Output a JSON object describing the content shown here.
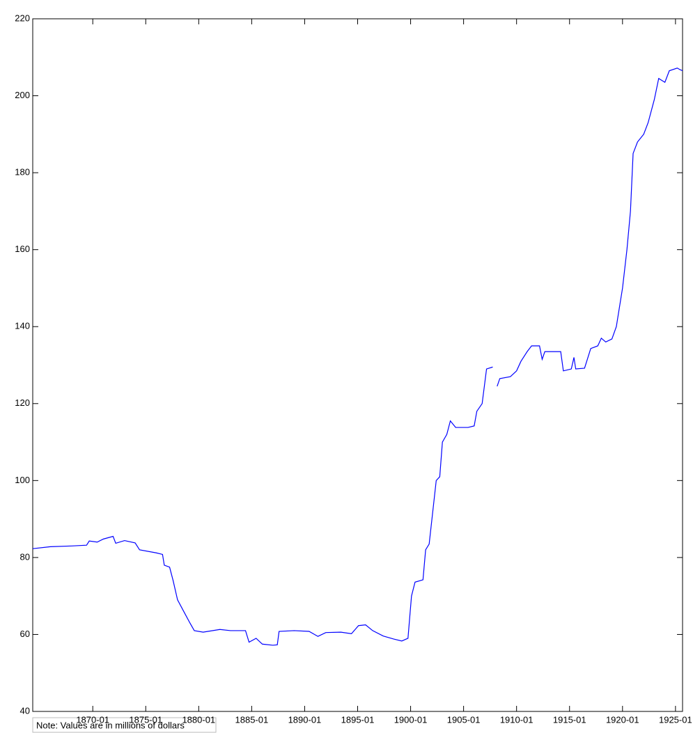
{
  "chart_data": {
    "type": "line",
    "note": "Note: Values are in millions of dollars",
    "x": [
      "1864-05",
      "1866-01",
      "1868-01",
      "1869-06",
      "1869-09",
      "1870-06",
      "1871-01",
      "1871-12",
      "1872-03",
      "1873-01",
      "1874-01",
      "1874-06",
      "1876-01",
      "1876-08",
      "1876-10",
      "1877-04",
      "1877-08",
      "1878-01",
      "1878-08",
      "1879-03",
      "1879-08",
      "1880-06",
      "1882-01",
      "1883-01",
      "1884-06",
      "1884-10",
      "1885-06",
      "1886-01",
      "1887-01",
      "1887-06",
      "1887-08",
      "1889-01",
      "1890-06",
      "1891-04",
      "1892-01",
      "1893-06",
      "1894-06",
      "1895-02",
      "1895-10",
      "1896-06",
      "1897-06",
      "1898-06",
      "1899-03",
      "1899-10",
      "1900-02",
      "1900-06",
      "1901-03",
      "1901-06",
      "1901-10",
      "1902-06",
      "1902-10",
      "1903-01",
      "1903-06",
      "1903-10",
      "1904-04",
      "1905-06",
      "1906-01",
      "1906-04",
      "1906-10",
      "1907-03",
      "1907-10",
      "1907-12",
      "1908-03",
      "1908-06",
      "1909-06",
      "1910-01",
      "1910-06",
      "1911-01",
      "1911-06",
      "1912-03",
      "1912-06",
      "1912-09",
      "1914-03",
      "1914-06",
      "1915-03",
      "1915-06",
      "1915-08",
      "1916-06",
      "1917-01",
      "1917-09",
      "1918-01",
      "1918-06",
      "1919-01",
      "1919-06",
      "1920-01",
      "1920-06",
      "1920-10",
      "1921-01",
      "1921-06",
      "1922-01",
      "1922-06",
      "1923-01",
      "1923-06",
      "1924-01",
      "1924-06",
      "1925-03",
      "1925-06",
      "1925-09"
    ],
    "series": [
      {
        "color": "#0000ff",
        "values": [
          82.3,
          82.8,
          83,
          83.2,
          84.3,
          84,
          84.8,
          85.5,
          83.7,
          84.4,
          83.8,
          82,
          81.2,
          80.8,
          78,
          77.5,
          74,
          69,
          66,
          63,
          61,
          60.6,
          61.3,
          61,
          61,
          58,
          59,
          57.5,
          57.2,
          57.3,
          60.8,
          61,
          60.8,
          59.5,
          60.5,
          60.6,
          60.2,
          62.3,
          62.5,
          61,
          59.6,
          58.8,
          58.3,
          59,
          70,
          73.6,
          74.2,
          82,
          83.5,
          100,
          101,
          110,
          112,
          115.5,
          113.8,
          113.8,
          114.2,
          118,
          120,
          129,
          129.5,
          null,
          124.5,
          126.5,
          127,
          128.5,
          131,
          133.5,
          135,
          135,
          131.5,
          133.5,
          133.5,
          128.5,
          129,
          132,
          129,
          129.2,
          134.3,
          135,
          137,
          136,
          136.8,
          140,
          150,
          160,
          170,
          185,
          188,
          190,
          193,
          199,
          204.5,
          203.5,
          206.5,
          207.2,
          206.8,
          206.5
        ]
      }
    ],
    "xlim": [
      "1864-05",
      "1925-09"
    ],
    "xticks": [
      "1870-01",
      "1875-01",
      "1880-01",
      "1885-01",
      "1890-01",
      "1895-01",
      "1900-01",
      "1905-01",
      "1910-01",
      "1915-01",
      "1920-01",
      "1925-01"
    ],
    "ylim": [
      40,
      220
    ],
    "yticks": [
      40,
      60,
      80,
      100,
      120,
      140,
      160,
      180,
      200,
      220
    ]
  }
}
